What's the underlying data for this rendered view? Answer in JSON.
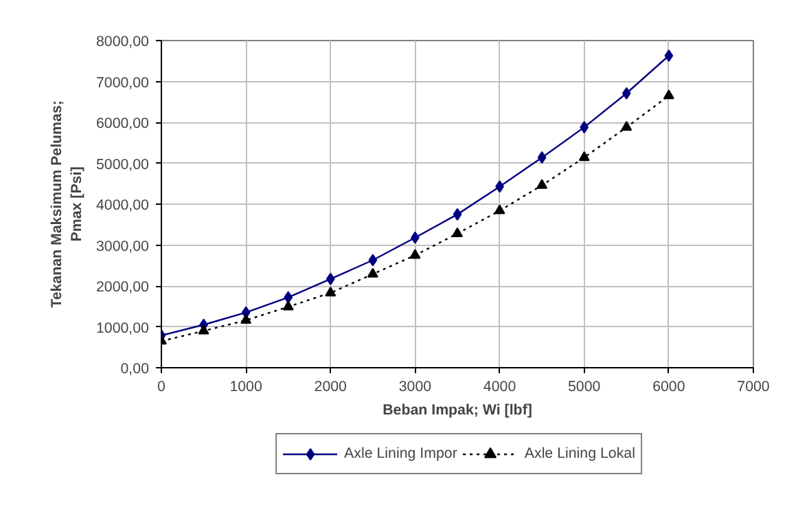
{
  "chart_data": {
    "type": "line",
    "xlabel": "Beban Impak; Wi [lbf]",
    "ylabel": "Tekanan Maksimum Pelumas;\nPmax [Psi]",
    "x": [
      0,
      500,
      1000,
      1500,
      2000,
      2500,
      3000,
      3500,
      4000,
      4500,
      5000,
      5500,
      6000
    ],
    "series": [
      {
        "name": "Axle Lining Impor",
        "color": "#000080",
        "marker": "diamond",
        "line_style": "solid",
        "values": [
          790,
          1050,
          1350,
          1720,
          2170,
          2630,
          3180,
          3750,
          4430,
          5140,
          5880,
          6710,
          7630
        ]
      },
      {
        "name": "Axle Lining Lokal",
        "color": "#000000",
        "marker": "triangle",
        "line_style": "dotted",
        "values": [
          650,
          900,
          1160,
          1490,
          1830,
          2290,
          2750,
          3280,
          3840,
          4460,
          5140,
          5880,
          6650
        ]
      }
    ],
    "xlim": [
      0,
      7000
    ],
    "xticks": [
      0,
      1000,
      2000,
      3000,
      4000,
      5000,
      6000,
      7000
    ],
    "ylim": [
      0,
      8000
    ],
    "yticks": [
      {
        "value": 0,
        "label": "0,00"
      },
      {
        "value": 1000,
        "label": "1000,00"
      },
      {
        "value": 2000,
        "label": "2000,00"
      },
      {
        "value": 3000,
        "label": "3000,00"
      },
      {
        "value": 4000,
        "label": "4000,00"
      },
      {
        "value": 5000,
        "label": "5000,00"
      },
      {
        "value": 6000,
        "label": "6000,00"
      },
      {
        "value": 7000,
        "label": "7000,00"
      },
      {
        "value": 8000,
        "label": "8000,00"
      }
    ],
    "grid": true,
    "legend": "bottom"
  }
}
